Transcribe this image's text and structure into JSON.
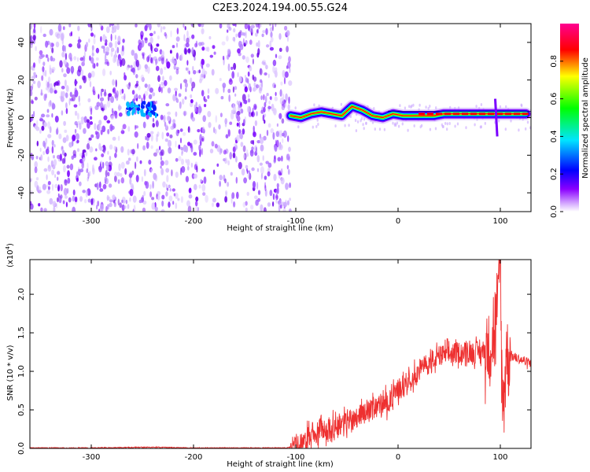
{
  "title": "C2E3.2024.194.00.55.G24",
  "chart_data": [
    {
      "type": "heatmap",
      "xlabel": "Height of straight line (km)",
      "ylabel": "Frequency (Hz)",
      "xlim": [
        -360,
        130
      ],
      "ylim": [
        -50,
        50
      ],
      "x_ticks": [
        -300,
        -200,
        -100,
        0,
        100
      ],
      "x_tick_labels": [
        "-300",
        "-200",
        "-100",
        "0",
        "100"
      ],
      "y_ticks": [
        -40,
        -20,
        0,
        20,
        40
      ],
      "y_tick_labels": [
        "-40",
        "-20",
        "0",
        "20",
        "40"
      ],
      "colorbar": {
        "label": "Normalized spectral amplitude",
        "range": [
          0,
          1
        ],
        "ticks": [
          0.0,
          0.2,
          0.4,
          0.6,
          0.8
        ],
        "tick_labels": [
          "0.0",
          "0.2",
          "0.4",
          "0.6",
          "0.8"
        ],
        "colormap": [
          "#ffffff",
          "#8a00ff",
          "#0000ff",
          "#00e5ff",
          "#00ff00",
          "#ffff00",
          "#ff0000",
          "#ff0090"
        ]
      },
      "ridge": {
        "description_values": "dominant frequency (Hz) vs height (km)",
        "x": [
          -105,
          -95,
          -85,
          -75,
          -65,
          -55,
          -45,
          -35,
          -25,
          -15,
          -5,
          5,
          15,
          25,
          35,
          45,
          55,
          65,
          75,
          85,
          95,
          105,
          115,
          125
        ],
        "y": [
          1,
          0,
          2,
          3,
          2,
          1,
          6,
          4,
          1,
          0,
          2,
          1,
          1,
          1,
          1,
          2,
          2,
          2,
          2,
          2,
          2,
          2,
          2,
          2
        ]
      },
      "noise_blob": {
        "x_range": [
          -265,
          -235
        ],
        "y_range": [
          5,
          12
        ]
      },
      "noise_region_x": [
        -360,
        -105
      ]
    },
    {
      "type": "line",
      "xlabel": "Height of straight line (km)",
      "ylabel": "SNR (10 * v/v)",
      "y_multiplier_label": "(x10",
      "y_multiplier_exp": "4",
      "y_multiplier_close": ")",
      "xlim": [
        -360,
        130
      ],
      "ylim": [
        0,
        2.45
      ],
      "x_ticks": [
        -300,
        -200,
        -100,
        0,
        100
      ],
      "x_tick_labels": [
        "-300",
        "-200",
        "-100",
        "0",
        "100"
      ],
      "y_ticks": [
        0.0,
        0.5,
        1.0,
        1.5,
        2.0
      ],
      "y_tick_labels": [
        "0.0",
        "0.5",
        "1.0",
        "1.5",
        "2.0"
      ],
      "color": "#ee3030",
      "x": [
        -360,
        -300,
        -240,
        -200,
        -150,
        -110,
        -100,
        -90,
        -80,
        -70,
        -60,
        -50,
        -40,
        -30,
        -20,
        -10,
        0,
        10,
        20,
        30,
        40,
        50,
        60,
        70,
        80,
        88,
        94,
        98,
        100,
        102,
        106,
        112,
        120,
        130
      ],
      "y": [
        0.0,
        0.0,
        0.01,
        0.0,
        0.0,
        0.0,
        0.02,
        0.1,
        0.2,
        0.25,
        0.3,
        0.35,
        0.42,
        0.5,
        0.55,
        0.6,
        0.75,
        0.9,
        1.0,
        1.1,
        1.2,
        1.22,
        1.25,
        1.25,
        1.25,
        1.3,
        1.5,
        1.9,
        2.45,
        0.5,
        1.25,
        1.2,
        1.15,
        1.1
      ]
    }
  ]
}
